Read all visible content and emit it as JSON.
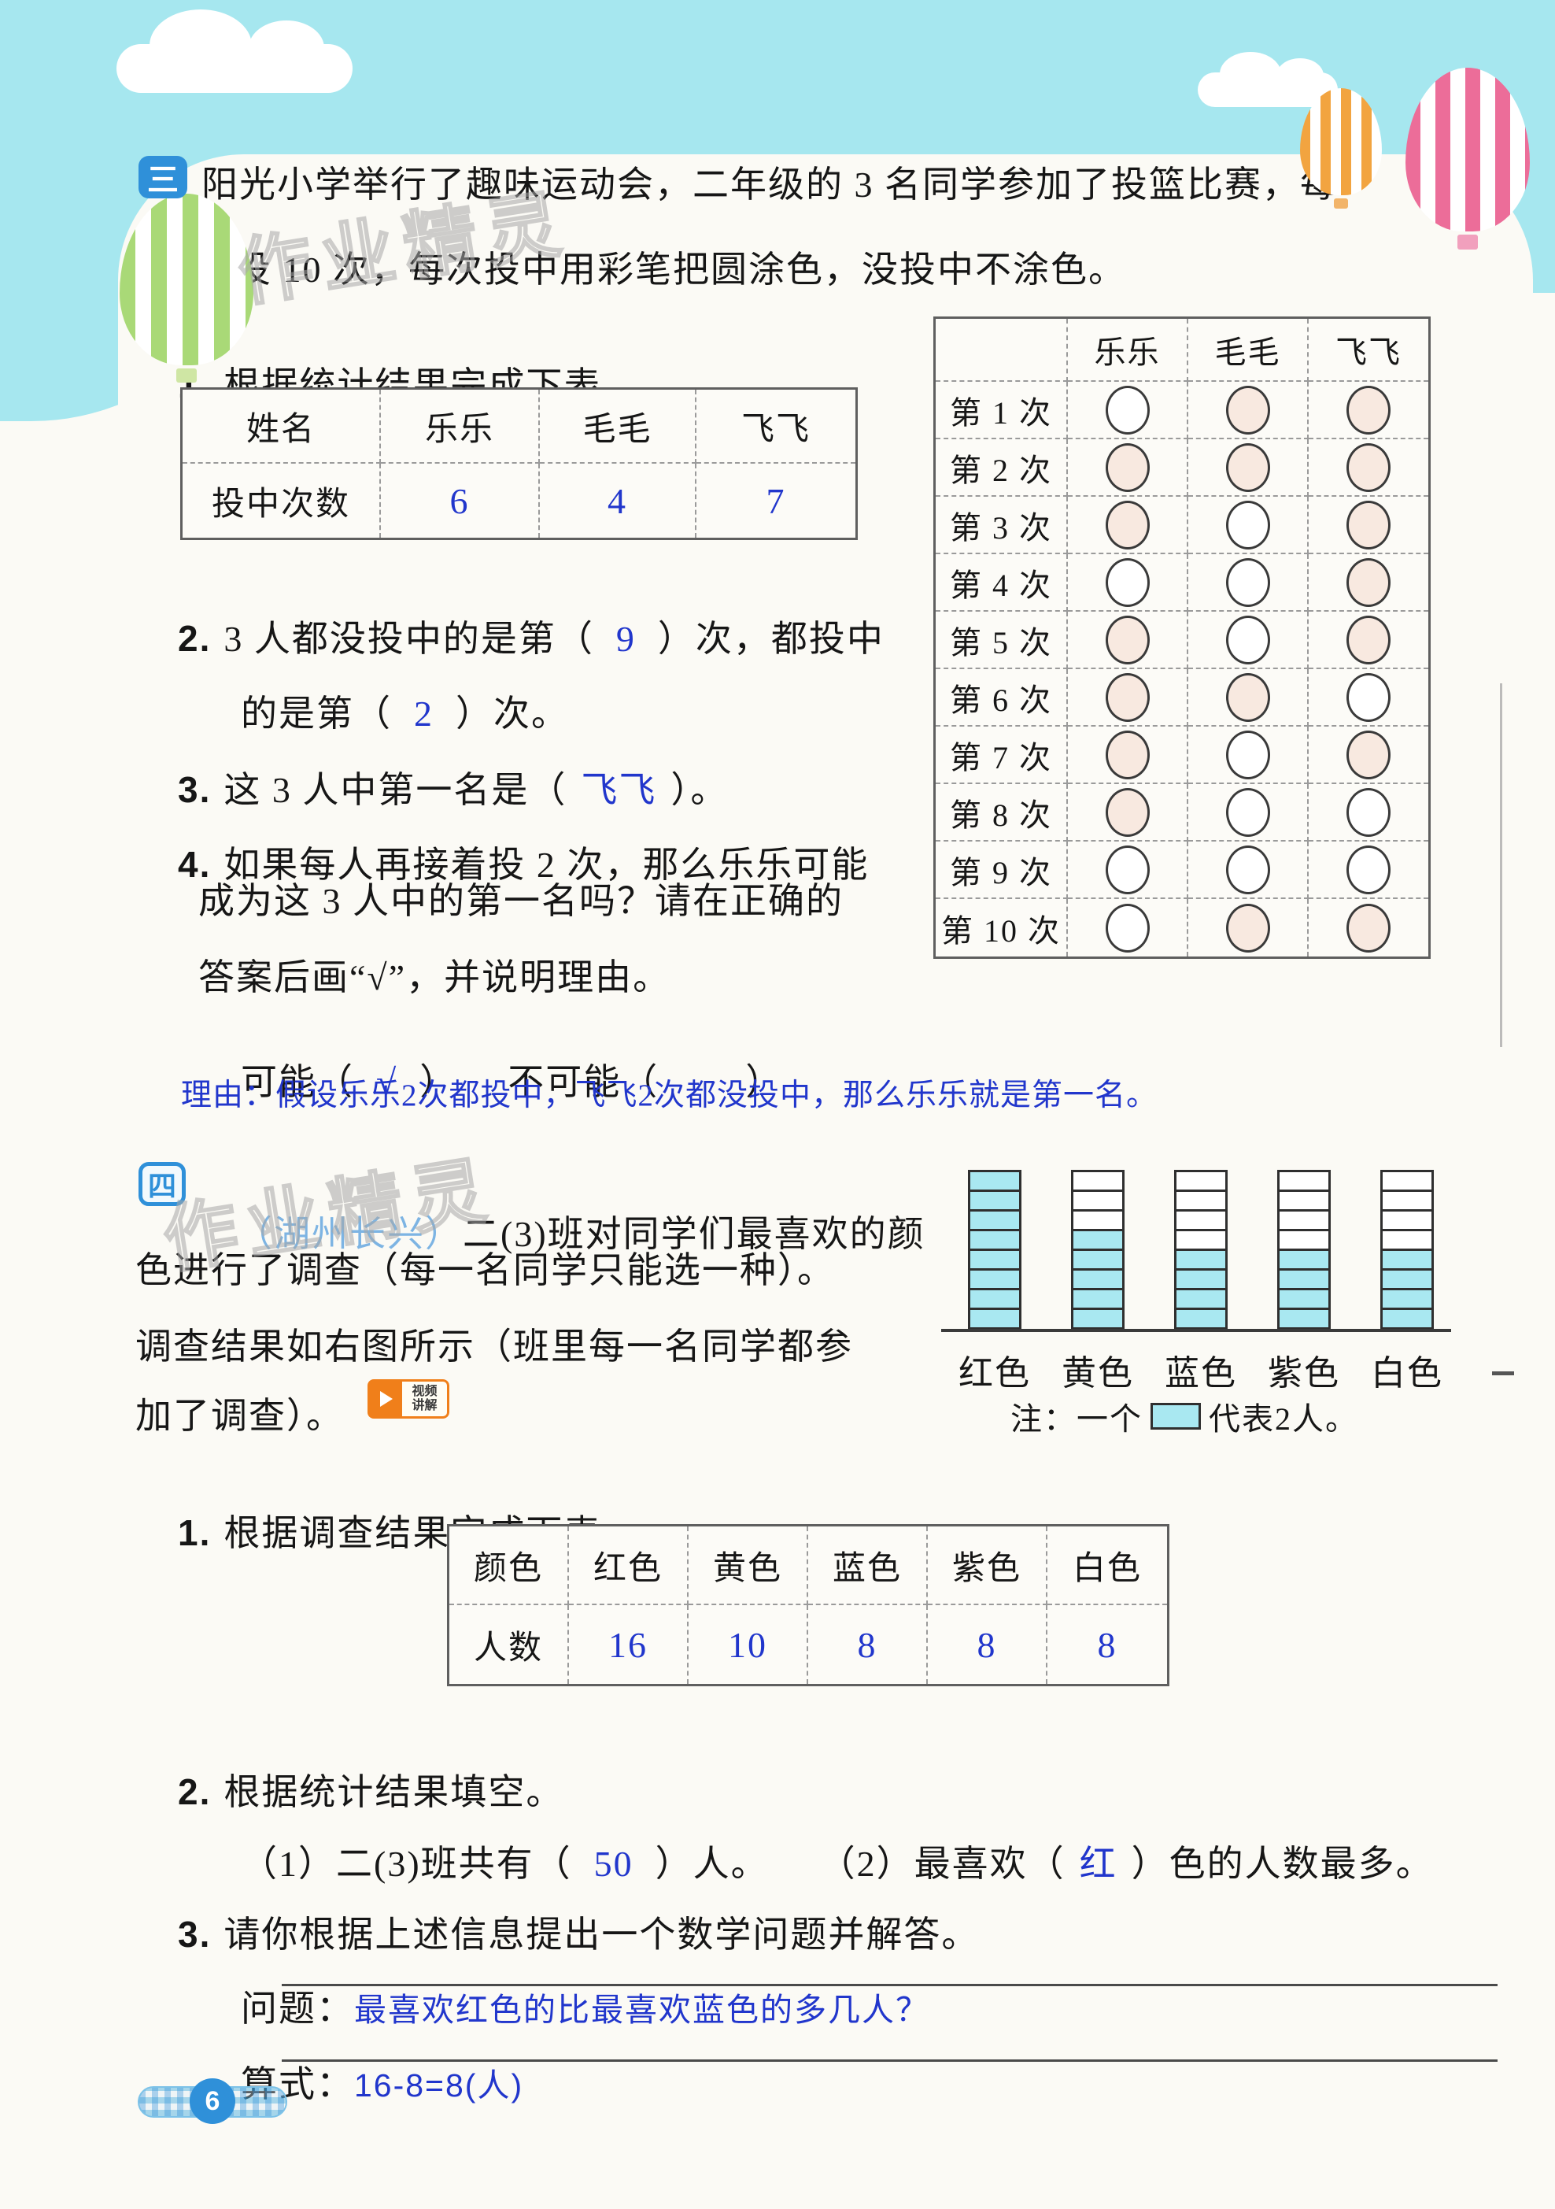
{
  "page_number": "6",
  "watermark_text": "作业精灵",
  "problem_three": {
    "badge": "三",
    "intro_line1": "阳光小学举行了趣味运动会，二年级的 3 名同学参加了投篮比赛，每",
    "intro_line2": "人投 10 次，每次投中用彩笔把圆涂色，没投中不涂色。",
    "q1_num": "1.",
    "q1_text": "根据统计结果完成下表。",
    "score_table": {
      "header_label": "姓名",
      "names": [
        "乐乐",
        "毛毛",
        "飞飞"
      ],
      "row_label": "投中次数",
      "values": [
        "6",
        "4",
        "7"
      ]
    },
    "shot_grid": {
      "columns": [
        "乐乐",
        "毛毛",
        "飞飞"
      ],
      "row_labels": [
        "第 1 次",
        "第 2 次",
        "第 3 次",
        "第 4 次",
        "第 5 次",
        "第 6 次",
        "第 7 次",
        "第 8 次",
        "第 9 次",
        "第 10 次"
      ],
      "filled": [
        [
          0,
          1,
          1
        ],
        [
          1,
          1,
          1
        ],
        [
          1,
          0,
          1
        ],
        [
          0,
          0,
          1
        ],
        [
          1,
          0,
          1
        ],
        [
          1,
          1,
          0
        ],
        [
          1,
          0,
          1
        ],
        [
          1,
          0,
          0
        ],
        [
          0,
          0,
          0
        ],
        [
          0,
          1,
          1
        ]
      ]
    },
    "q2_num": "2.",
    "q2_part1": "3 人都没投中的是第（",
    "q2_ans1": "9",
    "q2_part2": "）次，都投中",
    "q2_part3": "的是第（",
    "q2_ans2": "2",
    "q2_part4": "）次。",
    "q3_num": "3.",
    "q3_part1": "这 3 人中第一名是（",
    "q3_ans": "飞飞",
    "q3_part2": "）。",
    "q4_num": "4.",
    "q4_line1": "如果每人再接着投 2 次，那么乐乐可能",
    "q4_line2": "成为这 3 人中的第一名吗？请在正确的",
    "q4_line3": "答案后画“√”，并说明理由。",
    "q4_possible_pre": "可能（",
    "q4_possible_ans": "√",
    "q4_possible_post": "）",
    "q4_impossible_pre": "不可能（",
    "q4_impossible_post": "）",
    "q4_reason": "理由：假设乐乐2次都投中，飞飞2次都没投中，那么乐乐就是第一名。"
  },
  "problem_four": {
    "badge": "四",
    "source_tag": "（湖州长兴）",
    "intro_line1": "二(3)班对同学们最喜欢的颜",
    "intro_line2": "色进行了调查（每一名同学只能选一种）。",
    "intro_line3": "调查结果如右图所示（班里每一名同学都参",
    "intro_line4": "加了调查）。",
    "video_badge_line1": "视频",
    "video_badge_line2": "讲解",
    "note_pre": "注：一个",
    "note_post": "代表2人。",
    "q1_num": "1.",
    "q1_text": "根据调查结果完成下表。",
    "result_table": {
      "header_label": "颜色",
      "colors": [
        "红色",
        "黄色",
        "蓝色",
        "紫色",
        "白色"
      ],
      "row_label": "人数",
      "values": [
        "16",
        "10",
        "8",
        "8",
        "8"
      ]
    },
    "q2_num": "2.",
    "q2_text": "根据统计结果填空。",
    "q2_sub1_pre": "（1）二(3)班共有（",
    "q2_sub1_ans": "50",
    "q2_sub1_post": "）人。",
    "q2_sub2_pre": "（2）最喜欢（",
    "q2_sub2_ans": "红",
    "q2_sub2_post": "）色的人数最多。",
    "q3_num": "3.",
    "q3_text": "请你根据上述信息提出一个数学问题并解答。",
    "problem_label": "问题：",
    "problem_answer": "最喜欢红色的比最喜欢蓝色的多几人？",
    "formula_label": "算式：",
    "formula_answer": "16-8=8(人)"
  },
  "chart_data": {
    "type": "bar",
    "subtype": "pictograph-stacked-cells",
    "categories": [
      "红色",
      "黄色",
      "蓝色",
      "紫色",
      "白色"
    ],
    "values": [
      16,
      10,
      8,
      8,
      8
    ],
    "cells_filled": [
      8,
      5,
      4,
      4,
      4
    ],
    "cells_total_per_bar": 8,
    "per_cell": 2,
    "note": "注：一个□代表2人。",
    "title": "",
    "xlabel": "",
    "ylabel": "",
    "legend": "none",
    "grid": "cell-outlines",
    "fill_color": "#a9e8f1"
  },
  "colors": {
    "sky": "#a6e7ef",
    "paper": "#fbfaf5",
    "badge_blue": "#2f90d9",
    "answer_blue": "#2136cc",
    "source_blue": "#7db4e3",
    "circle_fill": "#f8e9e0",
    "cell_cyan": "#a9e8f1",
    "video_orange": "#f07f1a"
  }
}
